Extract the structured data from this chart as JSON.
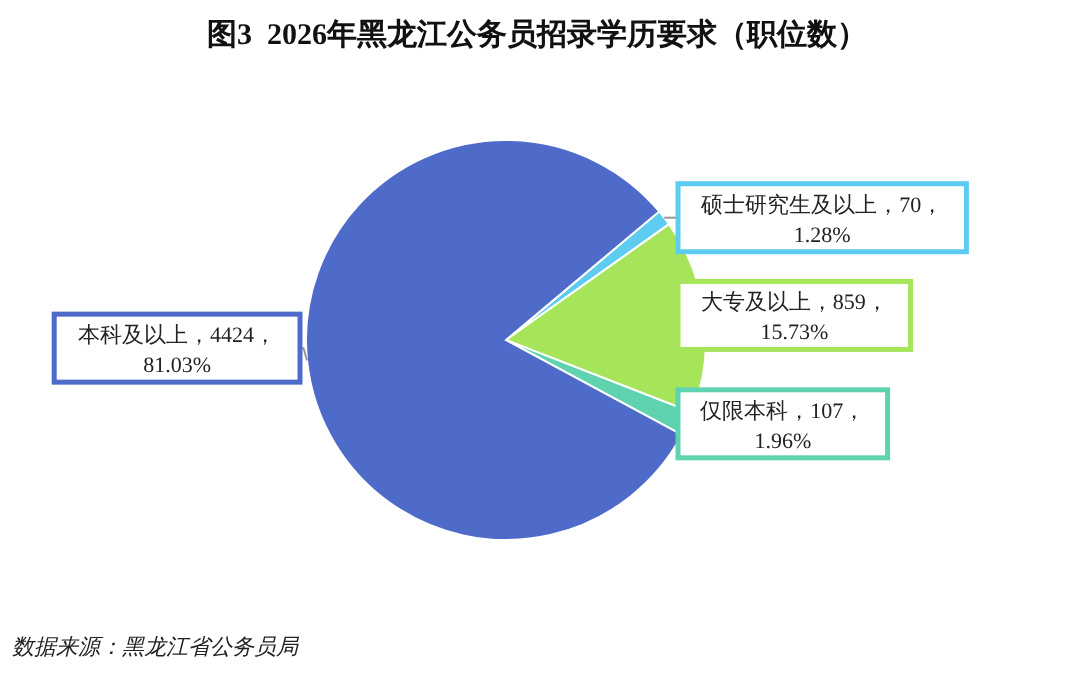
{
  "chart_data": {
    "type": "pie",
    "title": "图3  2026年黑龙江公务员招录学历要求（职位数）",
    "categories": [
      "硕士研究生及以上",
      "大专及以上",
      "仅限本科",
      "本科及以上"
    ],
    "values": [
      70,
      859,
      107,
      4424
    ],
    "value_labels": [
      "70，1.28%",
      "859，15.73%",
      "107，1.96%",
      "4424，81.03%"
    ],
    "colors": [
      "#5ecbf0",
      "#a6e45a",
      "#5fd3b0",
      "#4f6bc9"
    ],
    "annotations": [
      "数据来源：黑龙江省公务员局"
    ]
  }
}
